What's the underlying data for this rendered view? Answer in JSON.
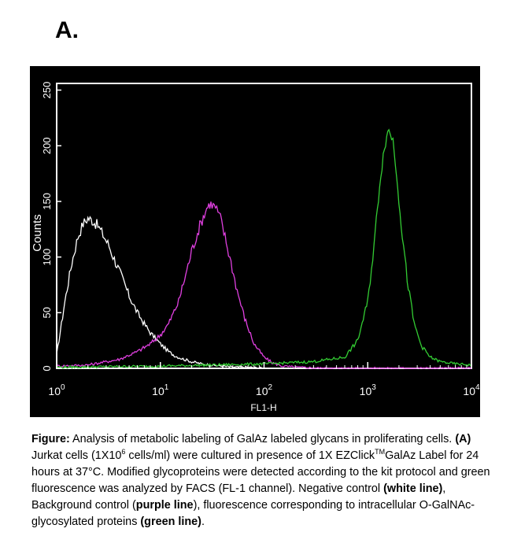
{
  "panel_label": "A.",
  "chart_data": {
    "type": "line",
    "title": "",
    "xlabel": "FL1-H",
    "ylabel": "Counts",
    "x_scale": "log",
    "xlim": [
      1,
      10000
    ],
    "ylim": [
      0,
      256
    ],
    "x_ticks": [
      {
        "value": 1,
        "base": "10",
        "exp": "0"
      },
      {
        "value": 10,
        "base": "10",
        "exp": "1"
      },
      {
        "value": 100,
        "base": "10",
        "exp": "2"
      },
      {
        "value": 1000,
        "base": "10",
        "exp": "3"
      },
      {
        "value": 10000,
        "base": "10",
        "exp": "4"
      }
    ],
    "y_ticks": [
      0,
      50,
      100,
      150,
      200,
      250
    ],
    "grid": false,
    "background": "#000000",
    "axis_color": "#ffffff",
    "series": [
      {
        "color": "#ffffff",
        "x": [
          1,
          1.2,
          1.4,
          1.6,
          1.8,
          2.0,
          2.2,
          2.5,
          2.8,
          3.2,
          3.6,
          4,
          4.5,
          5,
          6,
          7,
          8,
          10,
          12,
          14,
          17,
          20,
          25,
          30,
          40,
          50,
          70,
          100
        ],
        "y": [
          12,
          60,
          95,
          118,
          130,
          135,
          133,
          128,
          120,
          110,
          98,
          88,
          76,
          65,
          50,
          40,
          32,
          22,
          15,
          11,
          8,
          6,
          4,
          3,
          2,
          1,
          1,
          0
        ]
      },
      {
        "color": "#e040e0",
        "x": [
          1,
          2,
          4,
          6,
          8,
          10,
          12,
          15,
          18,
          20,
          24,
          28,
          30,
          34,
          38,
          42,
          48,
          55,
          65,
          80,
          100,
          120,
          150,
          200,
          400,
          1000,
          10000
        ],
        "y": [
          2,
          3,
          8,
          15,
          22,
          30,
          40,
          60,
          88,
          105,
          128,
          144,
          148,
          145,
          135,
          118,
          95,
          70,
          45,
          22,
          10,
          5,
          2,
          1,
          0,
          0,
          0
        ]
      },
      {
        "color": "#33cc33",
        "x": [
          1,
          10,
          100,
          300,
          600,
          800,
          1000,
          1150,
          1300,
          1450,
          1600,
          1750,
          1900,
          2100,
          2400,
          2800,
          3300,
          4000,
          5000,
          7000,
          10000
        ],
        "y": [
          1,
          2,
          4,
          6,
          10,
          25,
          60,
          110,
          165,
          200,
          215,
          205,
          175,
          130,
          80,
          40,
          20,
          10,
          6,
          4,
          3
        ]
      }
    ]
  },
  "caption": {
    "fig_label": "Figure:",
    "t1": " Analysis of metabolic labeling of GalAz labeled glycans in proliferating cells. ",
    "b1": "(A)",
    "t2": " Jurkat cells (1X10",
    "sup1": "6",
    "t3": " cells/ml) were cultured in presence of 1X EZClick",
    "sup2": "TM",
    "t4": "GalAz Label for 24 hours at 37°C. Modified glycoproteins were detected according to the kit protocol and green fluorescence was analyzed by FACS (FL-1 channel). Negative control ",
    "b2": "(white line)",
    "t5": ", Background control (",
    "b3": "purple line",
    "t6": "), fluorescence corresponding to intracellular O-GalNAc-glycosylated proteins ",
    "b4": "(green line)",
    "t7": "."
  }
}
